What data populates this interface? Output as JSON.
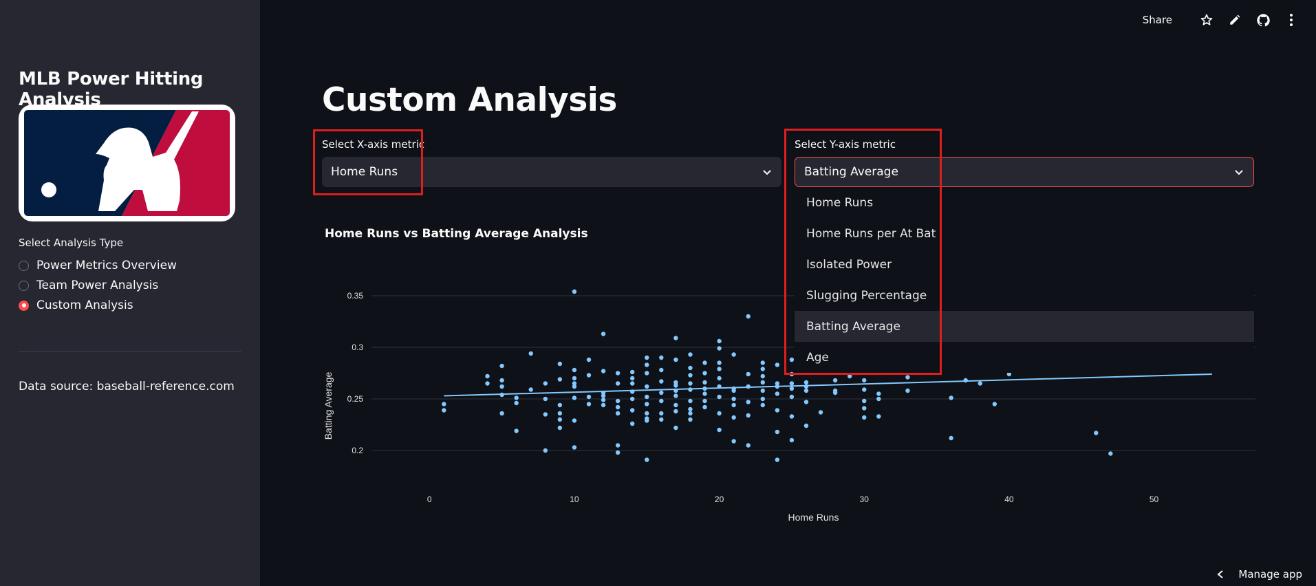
{
  "sidebar": {
    "title": "MLB Power Hitting Analysis",
    "logo_name": "mlb-logo",
    "radio_label": "Select Analysis Type",
    "options": [
      "Power Metrics Overview",
      "Team Power Analysis",
      "Custom Analysis"
    ],
    "selected_index": 2,
    "source": "Data source: baseball-reference.com"
  },
  "toolbar": {
    "share": "Share",
    "icons": [
      "star-icon",
      "edit-pencil-icon",
      "github-icon",
      "more-vertical-icon"
    ]
  },
  "main": {
    "title": "Custom Analysis",
    "x_select": {
      "label": "Select X-axis metric",
      "value": "Home Runs"
    },
    "y_select": {
      "label": "Select Y-axis metric",
      "value": "Batting Average"
    },
    "y_options": [
      "Home Runs",
      "Home Runs per At Bat",
      "Isolated Power",
      "Slugging Percentage",
      "Batting Average",
      "Age"
    ],
    "y_highlighted_index": 4
  },
  "colors": {
    "accent": "#ff4b4b",
    "points": "#83c9ff",
    "highlight_box": "#e01e1e",
    "sidebar": "#262730",
    "background": "#0e1117"
  },
  "chart_data": {
    "type": "scatter",
    "title": "Home Runs vs Batting Average Analysis",
    "xlabel": "Home Runs",
    "ylabel": "Batting Average",
    "xlim": [
      -4,
      57
    ],
    "ylim": [
      0.18,
      0.36
    ],
    "xticks": [
      0,
      10,
      20,
      30,
      40,
      50
    ],
    "yticks": [
      0.2,
      0.25,
      0.3,
      0.35
    ],
    "ytick_labels": [
      "0.2",
      "0.25",
      "0.3",
      "0.35"
    ],
    "grid": true,
    "trendline": [
      [
        1,
        0.253
      ],
      [
        54,
        0.274
      ]
    ],
    "points": [
      [
        1,
        0.245
      ],
      [
        1,
        0.239
      ],
      [
        4,
        0.272
      ],
      [
        4,
        0.265
      ],
      [
        5,
        0.282
      ],
      [
        5,
        0.268
      ],
      [
        5,
        0.262
      ],
      [
        5,
        0.254
      ],
      [
        5,
        0.236
      ],
      [
        6,
        0.251
      ],
      [
        6,
        0.246
      ],
      [
        6,
        0.219
      ],
      [
        7,
        0.294
      ],
      [
        7,
        0.259
      ],
      [
        8,
        0.265
      ],
      [
        8,
        0.25
      ],
      [
        8,
        0.235
      ],
      [
        8,
        0.2
      ],
      [
        9,
        0.284
      ],
      [
        9,
        0.269
      ],
      [
        9,
        0.244
      ],
      [
        9,
        0.236
      ],
      [
        9,
        0.23
      ],
      [
        9,
        0.222
      ],
      [
        10,
        0.354
      ],
      [
        10,
        0.278
      ],
      [
        10,
        0.27
      ],
      [
        10,
        0.265
      ],
      [
        10,
        0.262
      ],
      [
        10,
        0.251
      ],
      [
        10,
        0.229
      ],
      [
        10,
        0.203
      ],
      [
        11,
        0.288
      ],
      [
        11,
        0.273
      ],
      [
        11,
        0.252
      ],
      [
        11,
        0.245
      ],
      [
        12,
        0.313
      ],
      [
        12,
        0.277
      ],
      [
        12,
        0.256
      ],
      [
        12,
        0.253
      ],
      [
        12,
        0.249
      ],
      [
        12,
        0.244
      ],
      [
        13,
        0.275
      ],
      [
        13,
        0.265
      ],
      [
        13,
        0.248
      ],
      [
        13,
        0.242
      ],
      [
        13,
        0.236
      ],
      [
        13,
        0.205
      ],
      [
        13,
        0.198
      ],
      [
        14,
        0.276
      ],
      [
        14,
        0.27
      ],
      [
        14,
        0.265
      ],
      [
        14,
        0.257
      ],
      [
        14,
        0.25
      ],
      [
        14,
        0.239
      ],
      [
        14,
        0.226
      ],
      [
        15,
        0.29
      ],
      [
        15,
        0.283
      ],
      [
        15,
        0.275
      ],
      [
        15,
        0.262
      ],
      [
        15,
        0.252
      ],
      [
        15,
        0.245
      ],
      [
        15,
        0.236
      ],
      [
        15,
        0.231
      ],
      [
        15,
        0.229
      ],
      [
        15,
        0.191
      ],
      [
        16,
        0.29
      ],
      [
        16,
        0.278
      ],
      [
        16,
        0.267
      ],
      [
        16,
        0.256
      ],
      [
        16,
        0.248
      ],
      [
        16,
        0.236
      ],
      [
        16,
        0.23
      ],
      [
        17,
        0.309
      ],
      [
        17,
        0.288
      ],
      [
        17,
        0.266
      ],
      [
        17,
        0.263
      ],
      [
        17,
        0.258
      ],
      [
        17,
        0.253
      ],
      [
        17,
        0.244
      ],
      [
        17,
        0.238
      ],
      [
        17,
        0.222
      ],
      [
        18,
        0.293
      ],
      [
        18,
        0.28
      ],
      [
        18,
        0.273
      ],
      [
        18,
        0.265
      ],
      [
        18,
        0.259
      ],
      [
        18,
        0.248
      ],
      [
        18,
        0.24
      ],
      [
        18,
        0.236
      ],
      [
        18,
        0.23
      ],
      [
        19,
        0.285
      ],
      [
        19,
        0.275
      ],
      [
        19,
        0.266
      ],
      [
        19,
        0.26
      ],
      [
        19,
        0.255
      ],
      [
        19,
        0.248
      ],
      [
        19,
        0.242
      ],
      [
        20,
        0.306
      ],
      [
        20,
        0.299
      ],
      [
        20,
        0.285
      ],
      [
        20,
        0.279
      ],
      [
        20,
        0.27
      ],
      [
        20,
        0.262
      ],
      [
        20,
        0.252
      ],
      [
        20,
        0.236
      ],
      [
        20,
        0.22
      ],
      [
        21,
        0.293
      ],
      [
        21,
        0.26
      ],
      [
        21,
        0.258
      ],
      [
        21,
        0.25
      ],
      [
        21,
        0.244
      ],
      [
        21,
        0.232
      ],
      [
        21,
        0.209
      ],
      [
        22,
        0.33
      ],
      [
        22,
        0.274
      ],
      [
        22,
        0.262
      ],
      [
        22,
        0.247
      ],
      [
        22,
        0.234
      ],
      [
        22,
        0.205
      ],
      [
        23,
        0.285
      ],
      [
        23,
        0.279
      ],
      [
        23,
        0.272
      ],
      [
        23,
        0.266
      ],
      [
        23,
        0.258
      ],
      [
        23,
        0.25
      ],
      [
        23,
        0.244
      ],
      [
        24,
        0.283
      ],
      [
        24,
        0.265
      ],
      [
        24,
        0.262
      ],
      [
        24,
        0.255
      ],
      [
        24,
        0.239
      ],
      [
        24,
        0.218
      ],
      [
        24,
        0.191
      ],
      [
        25,
        0.288
      ],
      [
        25,
        0.274
      ],
      [
        25,
        0.265
      ],
      [
        25,
        0.26
      ],
      [
        25,
        0.252
      ],
      [
        25,
        0.233
      ],
      [
        25,
        0.21
      ],
      [
        26,
        0.307
      ],
      [
        26,
        0.266
      ],
      [
        26,
        0.262
      ],
      [
        26,
        0.258
      ],
      [
        26,
        0.247
      ],
      [
        26,
        0.224
      ],
      [
        27,
        0.237
      ],
      [
        28,
        0.268
      ],
      [
        28,
        0.258
      ],
      [
        28,
        0.256
      ],
      [
        29,
        0.276
      ],
      [
        29,
        0.272
      ],
      [
        30,
        0.268
      ],
      [
        30,
        0.259
      ],
      [
        30,
        0.248
      ],
      [
        30,
        0.241
      ],
      [
        30,
        0.232
      ],
      [
        31,
        0.255
      ],
      [
        31,
        0.25
      ],
      [
        31,
        0.233
      ],
      [
        32,
        0.276
      ],
      [
        33,
        0.271
      ],
      [
        33,
        0.258
      ],
      [
        35,
        0.276
      ],
      [
        36,
        0.251
      ],
      [
        36,
        0.212
      ],
      [
        37,
        0.268
      ],
      [
        38,
        0.265
      ],
      [
        39,
        0.245
      ],
      [
        40,
        0.274
      ],
      [
        46,
        0.217
      ],
      [
        47,
        0.197
      ]
    ]
  }
}
